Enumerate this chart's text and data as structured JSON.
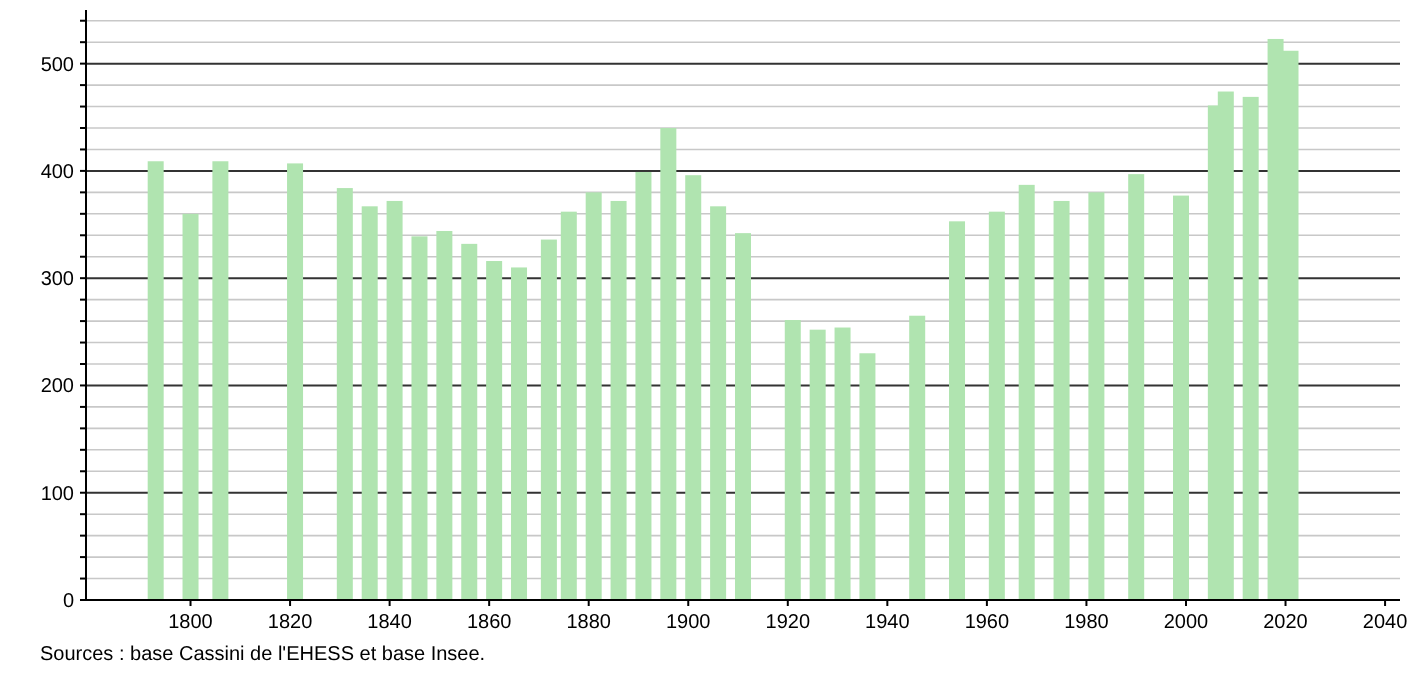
{
  "chart_data": {
    "type": "bar",
    "x": [
      1793,
      1800,
      1806,
      1821,
      1831,
      1836,
      1841,
      1846,
      1851,
      1856,
      1861,
      1866,
      1872,
      1876,
      1881,
      1886,
      1891,
      1896,
      1901,
      1906,
      1911,
      1921,
      1926,
      1931,
      1936,
      1946,
      1954,
      1962,
      1968,
      1975,
      1982,
      1990,
      1999,
      2006,
      2008,
      2013,
      2018,
      2021
    ],
    "values": [
      409,
      360,
      409,
      407,
      384,
      367,
      372,
      339,
      344,
      332,
      316,
      310,
      336,
      362,
      380,
      372,
      399,
      440,
      396,
      367,
      342,
      261,
      252,
      254,
      230,
      265,
      353,
      362,
      387,
      372,
      380,
      397,
      377,
      461,
      474,
      469,
      523,
      512
    ],
    "color": "#b0e4b0",
    "xlim": [
      1779,
      2043
    ],
    "xticks": [
      1800,
      1820,
      1840,
      1860,
      1880,
      1900,
      1920,
      1940,
      1960,
      1980,
      2000,
      2020,
      2040
    ],
    "ylim": [
      0,
      550
    ],
    "yticks": [
      0,
      {
        "value": 20,
        "label": null
      },
      {
        "value": 40,
        "label": null
      },
      {
        "value": 60,
        "label": null
      },
      {
        "value": 80,
        "label": null
      },
      100,
      {
        "value": 120,
        "label": null
      },
      {
        "value": 140,
        "label": null
      },
      {
        "value": 160,
        "label": null
      },
      {
        "value": 180,
        "label": null
      },
      200,
      {
        "value": 220,
        "label": null
      },
      {
        "value": 240,
        "label": null
      },
      {
        "value": 260,
        "label": null
      },
      {
        "value": 280,
        "label": null
      },
      300,
      {
        "value": 320,
        "label": null
      },
      {
        "value": 340,
        "label": null
      },
      {
        "value": 360,
        "label": null
      },
      {
        "value": 380,
        "label": null
      },
      400,
      {
        "value": 420,
        "label": null
      },
      {
        "value": 440,
        "label": null
      },
      {
        "value": 460,
        "label": null
      },
      {
        "value": 480,
        "label": null
      },
      500,
      {
        "value": 520,
        "label": null
      },
      {
        "value": 540,
        "label": null
      }
    ],
    "grid": "y",
    "annotations": [
      "Sources : base Cassini de l'EHESS et base Insee."
    ]
  }
}
